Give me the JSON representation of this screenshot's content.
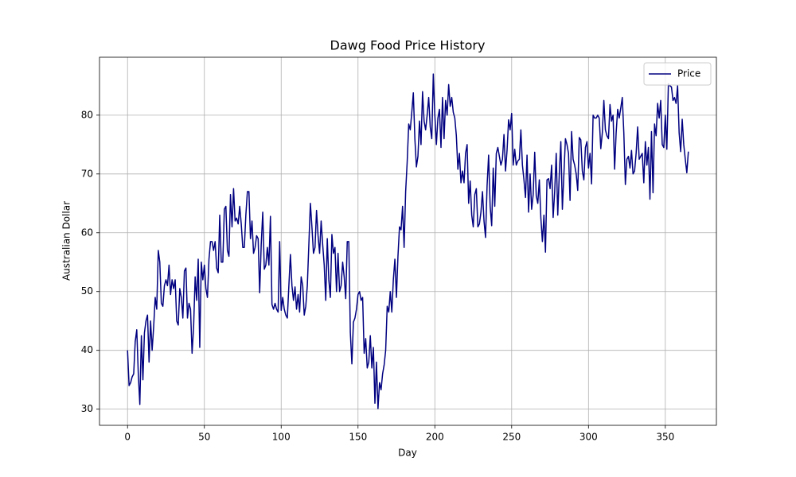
{
  "chart_data": {
    "type": "line",
    "title": "Dawg Food Price History",
    "xlabel": "Day",
    "ylabel": "Australian Dollar",
    "xlim": [
      -18.25,
      383.25
    ],
    "ylim": [
      27.25,
      89.85
    ],
    "xticks": [
      0,
      50,
      100,
      150,
      200,
      250,
      300,
      350
    ],
    "yticks": [
      30,
      40,
      50,
      60,
      70,
      80
    ],
    "grid": true,
    "legend": "upper right",
    "x": [
      0,
      1,
      2,
      3,
      4,
      5,
      6,
      7,
      8,
      9,
      10,
      11,
      12,
      13,
      14,
      15,
      16,
      17,
      18,
      19,
      20,
      21,
      22,
      23,
      24,
      25,
      26,
      27,
      28,
      29,
      30,
      31,
      32,
      33,
      34,
      35,
      36,
      37,
      38,
      39,
      40,
      41,
      42,
      43,
      44,
      45,
      46,
      47,
      48,
      49,
      50,
      51,
      52,
      53,
      54,
      55,
      56,
      57,
      58,
      59,
      60,
      61,
      62,
      63,
      64,
      65,
      66,
      67,
      68,
      69,
      70,
      71,
      72,
      73,
      74,
      75,
      76,
      77,
      78,
      79,
      80,
      81,
      82,
      83,
      84,
      85,
      86,
      87,
      88,
      89,
      90,
      91,
      92,
      93,
      94,
      95,
      96,
      97,
      98,
      99,
      100,
      101,
      102,
      103,
      104,
      105,
      106,
      107,
      108,
      109,
      110,
      111,
      112,
      113,
      114,
      115,
      116,
      117,
      118,
      119,
      120,
      121,
      122,
      123,
      124,
      125,
      126,
      127,
      128,
      129,
      130,
      131,
      132,
      133,
      134,
      135,
      136,
      137,
      138,
      139,
      140,
      141,
      142,
      143,
      144,
      145,
      146,
      147,
      148,
      149,
      150,
      151,
      152,
      153,
      154,
      155,
      156,
      157,
      158,
      159,
      160,
      161,
      162,
      163,
      164,
      165,
      166,
      167,
      168,
      169,
      170,
      171,
      172,
      173,
      174,
      175,
      176,
      177,
      178,
      179,
      180,
      181,
      182,
      183,
      184,
      185,
      186,
      187,
      188,
      189,
      190,
      191,
      192,
      193,
      194,
      195,
      196,
      197,
      198,
      199,
      200,
      201,
      202,
      203,
      204,
      205,
      206,
      207,
      208,
      209,
      210,
      211,
      212,
      213,
      214,
      215,
      216,
      217,
      218,
      219,
      220,
      221,
      222,
      223,
      224,
      225,
      226,
      227,
      228,
      229,
      230,
      231,
      232,
      233,
      234,
      235,
      236,
      237,
      238,
      239,
      240,
      241,
      242,
      243,
      244,
      245,
      246,
      247,
      248,
      249,
      250,
      251,
      252,
      253,
      254,
      255,
      256,
      257,
      258,
      259,
      260,
      261,
      262,
      263,
      264,
      265,
      266,
      267,
      268,
      269,
      270,
      271,
      272,
      273,
      274,
      275,
      276,
      277,
      278,
      279,
      280,
      281,
      282,
      283,
      284,
      285,
      286,
      287,
      288,
      289,
      290,
      291,
      292,
      293,
      294,
      295,
      296,
      297,
      298,
      299,
      300,
      301,
      302,
      303,
      304,
      305,
      306,
      307,
      308,
      309,
      310,
      311,
      312,
      313,
      314,
      315,
      316,
      317,
      318,
      319,
      320,
      321,
      322,
      323,
      324,
      325,
      326,
      327,
      328,
      329,
      330,
      331,
      332,
      333,
      334,
      335,
      336,
      337,
      338,
      339,
      340,
      341,
      342,
      343,
      344,
      345,
      346,
      347,
      348,
      349,
      350,
      351,
      352,
      353,
      354,
      355,
      356,
      357,
      358,
      359,
      360,
      361,
      362,
      363,
      364,
      365
    ],
    "series": [
      {
        "name": "Price",
        "color": "#000080",
        "values": [
          40,
          34,
          34.5,
          35.5,
          36,
          41.5,
          43.5,
          36,
          30.8,
          42.5,
          35,
          43,
          45,
          46,
          38,
          45,
          40,
          44,
          49,
          47,
          57,
          55,
          48,
          47.5,
          51,
          52,
          51,
          54.5,
          49.5,
          52,
          50.5,
          52,
          45,
          44.3,
          50.5,
          49,
          45.5,
          53.5,
          54,
          45.5,
          48,
          47,
          39.5,
          44,
          52.5,
          48.5,
          55.5,
          40.5,
          55,
          52,
          54.5,
          50.5,
          49,
          55.5,
          58.5,
          58.5,
          57,
          58.5,
          54,
          53.2,
          63,
          55,
          55,
          64,
          64.5,
          57,
          56,
          66.5,
          61,
          67.5,
          62,
          62.5,
          61.5,
          64.5,
          61.5,
          57.5,
          57.5,
          63,
          67,
          67,
          59,
          62,
          56.5,
          57.5,
          59.5,
          59,
          49.8,
          58,
          63.5,
          53.8,
          54.5,
          57.5,
          54.5,
          62.8,
          47.8,
          47,
          48,
          47,
          46.5,
          58.5,
          46.8,
          49,
          47,
          46,
          45.5,
          51,
          56.3,
          51,
          48.5,
          50.8,
          47,
          49.5,
          46.5,
          52.5,
          51,
          46,
          47.5,
          51,
          58,
          65,
          61,
          56.5,
          57.5,
          63.8,
          59.5,
          56.5,
          62,
          58,
          54.5,
          48.5,
          59,
          52,
          49,
          59.7,
          56.5,
          57.5,
          50,
          56.5,
          50,
          51,
          55,
          52.5,
          48.8,
          58.5,
          58.5,
          43,
          37.7,
          44.8,
          45.5,
          47,
          49.5,
          50,
          48.5,
          49,
          39.5,
          42,
          37,
          38,
          42.5,
          37,
          40.5,
          31,
          38,
          30.1,
          34.5,
          33.3,
          36,
          37.5,
          40,
          47.5,
          46.5,
          50,
          46.5,
          52,
          55.5,
          49,
          56,
          61,
          60.5,
          64.5,
          57.5,
          67,
          72,
          78.5,
          77.5,
          80.5,
          83.8,
          76,
          71.2,
          73,
          79,
          75,
          84,
          79,
          77.5,
          80,
          83,
          78,
          76,
          87,
          80,
          75,
          79.5,
          81,
          74.5,
          83,
          76,
          82.5,
          80,
          85.2,
          81.5,
          83,
          80.5,
          79.5,
          76.5,
          70.8,
          73.5,
          68.5,
          70.5,
          68.5,
          73.5,
          75,
          65,
          68.8,
          63,
          61,
          66.5,
          67.5,
          61,
          61.5,
          63.5,
          67,
          62,
          59.2,
          68,
          73.2,
          64.5,
          61.2,
          71,
          64.5,
          73.5,
          74.5,
          73,
          71.5,
          72.5,
          76.7,
          70.5,
          74,
          79.2,
          77.5,
          80.3,
          71.5,
          74.2,
          71.5,
          72.2,
          72.5,
          77.5,
          71.5,
          69,
          66,
          73.2,
          63.5,
          70,
          64,
          66.5,
          73.7,
          66.3,
          65,
          69,
          62.5,
          58.5,
          63,
          56.7,
          69,
          69.2,
          67.5,
          71.5,
          62.6,
          67,
          73.5,
          63,
          70,
          75.5,
          64,
          70,
          76,
          75,
          73.5,
          65.5,
          77.2,
          72.5,
          71.5,
          70,
          67.2,
          76.2,
          75.8,
          70.5,
          69,
          74.5,
          75.5,
          71,
          73.5,
          68.3,
          80,
          79.5,
          79.5,
          80,
          79.5,
          74.3,
          77,
          82.5,
          77.5,
          76.5,
          76,
          81.8,
          79,
          80,
          70.8,
          77,
          81,
          79.5,
          81.2,
          83,
          77,
          68.2,
          72.5,
          73,
          71,
          74,
          70,
          70.5,
          73.5,
          78,
          72.5,
          73,
          73.5,
          68.5,
          75.5,
          71.5,
          74.5,
          65.7,
          77.2,
          66.8,
          78.5,
          76.5,
          82,
          79.5,
          82.5,
          75,
          74.5,
          80,
          74.2,
          85.3,
          85,
          84.8,
          82.5,
          83,
          82,
          85,
          77,
          73.8,
          79.3,
          75,
          72.5,
          70.2,
          73.8
        ]
      }
    ]
  }
}
